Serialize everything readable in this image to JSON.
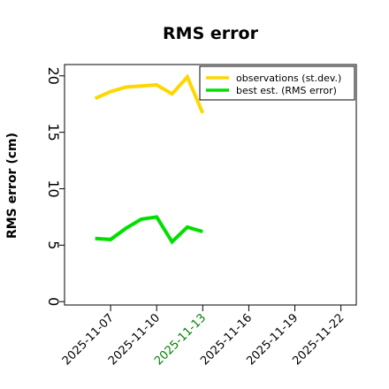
{
  "chart_data": {
    "type": "line",
    "title": "RMS error",
    "xlabel": "",
    "ylabel": "RMS error (cm)",
    "ylim": [
      -0.3,
      21
    ],
    "xlim": [
      "2025-11-04",
      "2025-11-23"
    ],
    "yticks": [
      0,
      5,
      10,
      15,
      20
    ],
    "xticks": [
      "2025-11-07",
      "2025-11-10",
      "2025-11-13",
      "2025-11-16",
      "2025-11-19",
      "2025-11-22"
    ],
    "highlight_xtick": "2025-11-13",
    "highlight_color": "#008000",
    "grid": false,
    "legend_position": "top-right",
    "x": [
      "2025-11-06",
      "2025-11-07",
      "2025-11-08",
      "2025-11-09",
      "2025-11-10",
      "2025-11-11",
      "2025-11-12",
      "2025-11-13"
    ],
    "series": [
      {
        "name": "observations (st.dev.)",
        "color": "#FFD700",
        "values": [
          18.0,
          18.6,
          19.0,
          19.1,
          19.2,
          18.4,
          19.9,
          16.7
        ]
      },
      {
        "name": "best est. (RMS error)",
        "color": "#00E000",
        "values": [
          5.6,
          5.5,
          6.5,
          7.3,
          7.5,
          5.3,
          6.6,
          6.2
        ]
      }
    ]
  }
}
